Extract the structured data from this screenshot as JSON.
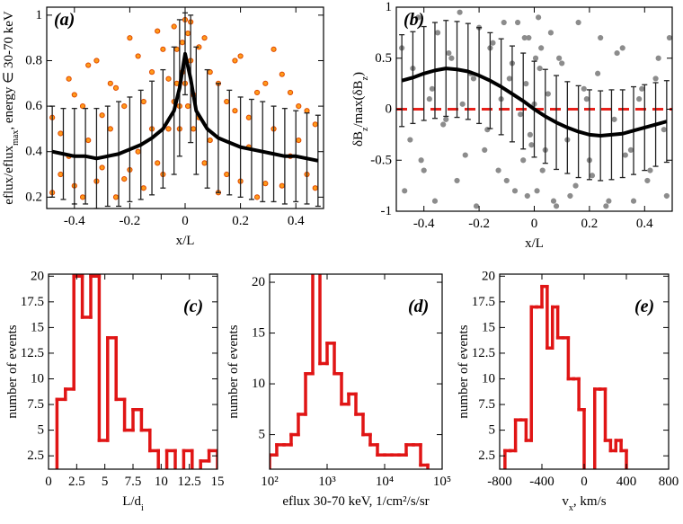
{
  "chart_data": [
    {
      "type": "errorbar",
      "label": "(a)",
      "xlabel": [
        "x/L"
      ],
      "ylabel": [
        "eflux/eflux",
        "max",
        ", energy ∈ 30-70 keV"
      ],
      "xlim": [
        -0.5,
        0.5
      ],
      "xticks": [
        -0.4,
        -0.2,
        0,
        0.2,
        0.4
      ],
      "ylim": [
        0.15,
        1.035
      ],
      "yticks": [
        0.2,
        0.4,
        0.6,
        0.8,
        1
      ],
      "scatter": {
        "color": "#ff9a1a",
        "edge": "#e04a00",
        "x": [
          -0.48,
          -0.45,
          -0.42,
          -0.4,
          -0.37,
          -0.35,
          -0.32,
          -0.3,
          -0.27,
          -0.25,
          -0.22,
          -0.2,
          -0.17,
          -0.15,
          -0.12,
          -0.1,
          -0.08,
          -0.06,
          -0.04,
          -0.03,
          -0.02,
          -0.01,
          0,
          0.01,
          0.02,
          0.03,
          0.05,
          0.07,
          0.09,
          0.12,
          0.15,
          0.18,
          0.2,
          0.23,
          0.26,
          0.29,
          0.32,
          0.35,
          0.38,
          0.41,
          0.44,
          0.47,
          -0.48,
          -0.45,
          -0.42,
          -0.4,
          -0.37,
          -0.35,
          -0.32,
          -0.3,
          -0.27,
          -0.25,
          -0.22,
          -0.2,
          -0.17,
          -0.15,
          -0.12,
          -0.1,
          -0.08,
          -0.06,
          -0.04,
          -0.03,
          -0.02,
          -0.01,
          0,
          0.01,
          0.02,
          0.03,
          0.05,
          0.07,
          0.09,
          0.12,
          0.15,
          0.18,
          0.2,
          0.23,
          0.26,
          0.29,
          0.32,
          0.35,
          0.38,
          0.41,
          0.44,
          0.47
        ],
        "y": [
          0.55,
          0.3,
          0.72,
          0.25,
          0.6,
          0.45,
          0.8,
          0.33,
          0.5,
          0.68,
          0.28,
          0.9,
          0.4,
          0.62,
          0.75,
          0.35,
          0.85,
          0.5,
          0.95,
          0.7,
          0.6,
          0.88,
          0.98,
          0.92,
          0.8,
          0.65,
          0.55,
          0.9,
          0.45,
          0.7,
          0.3,
          0.58,
          0.82,
          0.42,
          0.66,
          0.26,
          0.5,
          0.74,
          0.38,
          0.6,
          0.3,
          0.52,
          0.22,
          0.48,
          0.38,
          0.65,
          0.2,
          0.78,
          0.27,
          0.56,
          0.7,
          0.2,
          0.6,
          0.32,
          0.82,
          0.24,
          0.5,
          0.93,
          0.3,
          0.72,
          0.62,
          0.85,
          0.5,
          0.75,
          0.7,
          0.6,
          0.97,
          0.5,
          0.86,
          0.35,
          0.75,
          0.22,
          0.62,
          0.8,
          0.27,
          0.55,
          0.2,
          0.7,
          0.85,
          0.25,
          0.66,
          0.45,
          0.58,
          0.24
        ]
      },
      "mean": {
        "color": "#000000",
        "x": [
          -0.48,
          -0.44,
          -0.4,
          -0.36,
          -0.32,
          -0.28,
          -0.24,
          -0.2,
          -0.16,
          -0.12,
          -0.08,
          -0.04,
          -0.02,
          0,
          0.02,
          0.04,
          0.08,
          0.12,
          0.16,
          0.2,
          0.24,
          0.28,
          0.32,
          0.36,
          0.4,
          0.44,
          0.48
        ],
        "values": [
          0.4,
          0.39,
          0.38,
          0.38,
          0.37,
          0.38,
          0.39,
          0.41,
          0.43,
          0.46,
          0.5,
          0.58,
          0.68,
          0.83,
          0.72,
          0.58,
          0.5,
          0.46,
          0.44,
          0.42,
          0.41,
          0.4,
          0.39,
          0.38,
          0.38,
          0.37,
          0.36
        ],
        "errors": [
          0.2,
          0.2,
          0.21,
          0.21,
          0.22,
          0.22,
          0.23,
          0.23,
          0.24,
          0.25,
          0.26,
          0.28,
          0.3,
          0.18,
          0.28,
          0.28,
          0.26,
          0.24,
          0.23,
          0.22,
          0.22,
          0.22,
          0.21,
          0.21,
          0.2,
          0.2,
          0.2
        ]
      }
    },
    {
      "type": "errorbar",
      "label": "(b)",
      "xlabel": [
        "x/L"
      ],
      "ylabel": [
        "δB",
        "z",
        "/max(δB",
        "z",
        ")"
      ],
      "xlim": [
        -0.5,
        0.5
      ],
      "xticks": [
        -0.4,
        -0.2,
        0,
        0.2,
        0.4
      ],
      "ylim": [
        -1,
        1
      ],
      "yticks": [
        -1,
        -0.5,
        0,
        0.5,
        1
      ],
      "hline": {
        "value": 0,
        "color": "#e8201a"
      },
      "scatter": {
        "color": "#8c8c8c",
        "edge": "#8c8c8c",
        "x": [
          -0.48,
          -0.45,
          -0.42,
          -0.4,
          -0.37,
          -0.35,
          -0.32,
          -0.3,
          -0.27,
          -0.25,
          -0.22,
          -0.2,
          -0.17,
          -0.15,
          -0.12,
          -0.1,
          -0.08,
          -0.06,
          -0.04,
          -0.03,
          -0.02,
          -0.01,
          0,
          0.01,
          0.02,
          0.03,
          0.05,
          0.07,
          0.09,
          0.12,
          0.15,
          0.18,
          0.2,
          0.23,
          0.26,
          0.29,
          0.32,
          0.35,
          0.38,
          0.41,
          0.44,
          0.47,
          -0.47,
          -0.44,
          -0.41,
          -0.38,
          -0.36,
          -0.33,
          -0.31,
          -0.28,
          -0.26,
          -0.23,
          -0.21,
          -0.18,
          -0.16,
          -0.13,
          -0.11,
          -0.09,
          -0.07,
          -0.05,
          -0.035,
          -0.025,
          -0.015,
          0.005,
          0.015,
          0.025,
          0.04,
          0.06,
          0.08,
          0.1,
          0.13,
          0.16,
          0.19,
          0.21,
          0.24,
          0.27,
          0.3,
          0.33,
          0.36,
          0.39,
          0.42,
          0.45,
          0.48,
          0.49
        ],
        "y": [
          0.6,
          -0.3,
          0.9,
          -0.6,
          0.2,
          0.75,
          -0.1,
          0.5,
          0.95,
          -0.45,
          0.3,
          0.8,
          -0.2,
          0.65,
          0.1,
          -0.7,
          0.45,
          0.85,
          -0.5,
          0.25,
          0.7,
          -0.35,
          0.05,
          -0.8,
          0.4,
          -0.6,
          0.15,
          -0.9,
          0.5,
          -0.3,
          -0.75,
          0.2,
          -0.5,
          0.35,
          -0.95,
          -0.1,
          0.6,
          -0.4,
          0.1,
          -0.7,
          0.3,
          -0.2,
          -0.8,
          0.4,
          -0.5,
          0.1,
          -0.9,
          -0.15,
          0.55,
          -0.7,
          0.05,
          0.35,
          -0.95,
          -0.4,
          0.6,
          -0.6,
          0.85,
          0.3,
          -0.8,
          -0.05,
          0.7,
          -0.85,
          -0.25,
          0.5,
          0.9,
          0.6,
          -0.4,
          0.75,
          -0.95,
          0.45,
          -0.85,
          0.85,
          0.1,
          -0.65,
          0.7,
          -0.9,
          0.55,
          -0.45,
          -0.9,
          0.2,
          -0.6,
          0.5,
          -0.85,
          0.7
        ]
      },
      "mean": {
        "color": "#000000",
        "x": [
          -0.48,
          -0.44,
          -0.4,
          -0.36,
          -0.32,
          -0.28,
          -0.24,
          -0.2,
          -0.16,
          -0.12,
          -0.08,
          -0.04,
          0,
          0.04,
          0.08,
          0.12,
          0.16,
          0.2,
          0.24,
          0.28,
          0.32,
          0.36,
          0.4,
          0.44,
          0.48
        ],
        "values": [
          0.28,
          0.31,
          0.35,
          0.38,
          0.4,
          0.39,
          0.37,
          0.33,
          0.28,
          0.22,
          0.15,
          0.08,
          0,
          -0.07,
          -0.13,
          -0.18,
          -0.22,
          -0.25,
          -0.26,
          -0.25,
          -0.24,
          -0.21,
          -0.18,
          -0.15,
          -0.12
        ],
        "errors": [
          0.45,
          0.45,
          0.46,
          0.47,
          0.47,
          0.47,
          0.47,
          0.47,
          0.47,
          0.47,
          0.47,
          0.47,
          0.47,
          0.46,
          0.46,
          0.45,
          0.45,
          0.44,
          0.44,
          0.44,
          0.43,
          0.43,
          0.42,
          0.41,
          0.4
        ]
      }
    },
    {
      "type": "histogram",
      "label": "(c)",
      "xlabel": [
        "L/d",
        "i"
      ],
      "ylabel": [
        "number of events"
      ],
      "color": "#e01515",
      "xlim": [
        0,
        15
      ],
      "xticks": [
        0,
        2.5,
        5,
        7.5,
        10,
        12.5,
        15
      ],
      "ylim": [
        1.2,
        20.2
      ],
      "yticks": [
        2.5,
        5,
        7.5,
        10,
        12.5,
        15,
        17.5,
        20
      ],
      "bins": [
        0,
        0.75,
        1.5,
        2.25,
        3,
        3.75,
        4.5,
        5.25,
        6,
        6.75,
        7.5,
        8.25,
        9,
        9.75,
        10.5,
        11.25,
        12,
        12.75,
        13.5,
        14.25,
        15
      ],
      "values": [
        1,
        8,
        9,
        20,
        16,
        20,
        4,
        14,
        8,
        5,
        7,
        5,
        3,
        1,
        3,
        1,
        3,
        1,
        2,
        3
      ]
    },
    {
      "type": "histogram",
      "label": "(d)",
      "xlabel": [
        "eflux 30-70 keV, 1/cm²/s/sr"
      ],
      "ylabel": [
        "number of events"
      ],
      "color": "#e01515",
      "xscale": "log",
      "xlim": [
        100,
        100000
      ],
      "xticks": [
        {
          "value": 100,
          "label": "10²"
        },
        {
          "value": 1000,
          "label": "10³"
        },
        {
          "value": 10000,
          "label": "10⁴"
        },
        {
          "value": 100000,
          "label": "10⁵"
        }
      ],
      "ylim": [
        1.6,
        20.8
      ],
      "yticks": [
        5,
        10,
        15,
        20
      ],
      "bins": [
        100,
        133,
        178,
        237,
        316,
        422,
        562,
        750,
        1000,
        1334,
        1778,
        2371,
        3162,
        4217,
        5623,
        7499,
        10000,
        13335,
        17783,
        23714,
        31623,
        42170,
        56234,
        74989
      ],
      "values": [
        3,
        4,
        4,
        5,
        7,
        11,
        21,
        12,
        14,
        11,
        8,
        9,
        7,
        5,
        4,
        3,
        3,
        3,
        3,
        4,
        4,
        2,
        1
      ]
    },
    {
      "type": "histogram",
      "label": "(e)",
      "xlabel": [
        "v",
        "x",
        ", km/s"
      ],
      "ylabel": [
        "number of events"
      ],
      "color": "#e01515",
      "xlim": [
        -800,
        800
      ],
      "xticks": [
        -800,
        -400,
        0,
        400,
        800
      ],
      "ylim": [
        1.2,
        20.2
      ],
      "yticks": [
        2.5,
        5,
        7.5,
        10,
        12.5,
        15,
        17.5,
        20
      ],
      "bins": [
        -800,
        -750,
        -700,
        -650,
        -600,
        -550,
        -500,
        -450,
        -400,
        -350,
        -300,
        -250,
        -200,
        -150,
        -100,
        -50,
        0,
        50,
        100,
        150,
        200,
        250,
        300,
        350,
        400,
        450,
        500
      ],
      "values": [
        1,
        3,
        3,
        6,
        6,
        4,
        17,
        17,
        19,
        13,
        17,
        14,
        14,
        10,
        10,
        7,
        1,
        1,
        9,
        9,
        4,
        3,
        4,
        3,
        1,
        1
      ]
    }
  ]
}
